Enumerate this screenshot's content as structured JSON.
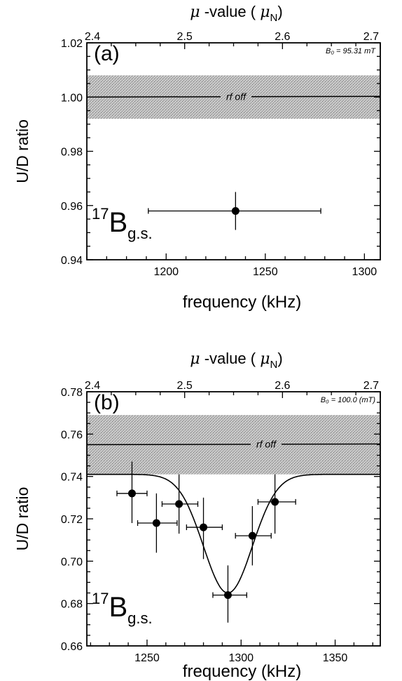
{
  "chart_data": [
    {
      "type": "scatter",
      "panel_label": "(a)",
      "xlabel": "frequency (kHz)",
      "ylabel": "U/D ratio",
      "top_axis_label": {
        "prefix": "μ -value (  ",
        "symbol": "μ",
        "subscript": "N",
        "suffix": ")"
      },
      "xlim": [
        1160,
        1308
      ],
      "ylim": [
        0.94,
        1.02
      ],
      "x_ticks": [
        1200,
        1250,
        1300
      ],
      "y_ticks": [
        0.94,
        0.96,
        0.98,
        1.0,
        1.02
      ],
      "top_ticks": [
        2.4,
        2.5,
        2.6,
        2.7
      ],
      "field_annotation": "B₀ = 95.31 mT",
      "reference_label": "rf off",
      "reference_value": 1.0,
      "reference_band": [
        0.992,
        1.008
      ],
      "isotope": {
        "mass": "17",
        "element": "B",
        "state": "g.s."
      },
      "points": [
        {
          "x": 1235,
          "y": 0.958,
          "xerr_low": 1191,
          "xerr_high": 1278,
          "yerr_low": 0.951,
          "yerr_high": 0.965
        }
      ]
    },
    {
      "type": "scatter",
      "panel_label": "(b)",
      "xlabel": "frequency (kHz)",
      "ylabel": "U/D ratio",
      "top_axis_label": {
        "prefix": "μ -value (  ",
        "symbol": "μ",
        "subscript": "N",
        "suffix": ")"
      },
      "xlim": [
        1218,
        1374
      ],
      "ylim": [
        0.66,
        0.78
      ],
      "x_ticks": [
        1250,
        1300,
        1350
      ],
      "y_ticks": [
        0.66,
        0.68,
        0.7,
        0.72,
        0.74,
        0.76,
        0.78
      ],
      "top_ticks": [
        2.4,
        2.5,
        2.6,
        2.7
      ],
      "field_annotation": "B₀ = 100.0 (mT)",
      "reference_label": "rf off",
      "reference_value": 0.755,
      "reference_band": [
        0.741,
        0.769
      ],
      "isotope": {
        "mass": "17",
        "element": "B",
        "state": "g.s."
      },
      "fit_curve": {
        "baseline": 0.741,
        "depth": 0.056,
        "center": 1293,
        "sigma": 13
      },
      "points": [
        {
          "x": 1242,
          "y": 0.732,
          "xerr_low": 1234,
          "xerr_high": 1250,
          "yerr_low": 0.718,
          "yerr_high": 0.747
        },
        {
          "x": 1255,
          "y": 0.718,
          "xerr_low": 1245,
          "xerr_high": 1266,
          "yerr_low": 0.704,
          "yerr_high": 0.732
        },
        {
          "x": 1267,
          "y": 0.727,
          "xerr_low": 1258,
          "xerr_high": 1277,
          "yerr_low": 0.713,
          "yerr_high": 0.741
        },
        {
          "x": 1280,
          "y": 0.716,
          "xerr_low": 1271,
          "xerr_high": 1290,
          "yerr_low": 0.701,
          "yerr_high": 0.73
        },
        {
          "x": 1293,
          "y": 0.684,
          "xerr_low": 1285,
          "xerr_high": 1303,
          "yerr_low": 0.671,
          "yerr_high": 0.698
        },
        {
          "x": 1306,
          "y": 0.712,
          "xerr_low": 1297,
          "xerr_high": 1316,
          "yerr_low": 0.698,
          "yerr_high": 0.726
        },
        {
          "x": 1318,
          "y": 0.728,
          "xerr_low": 1309,
          "xerr_high": 1329,
          "yerr_low": 0.713,
          "yerr_high": 0.741
        }
      ]
    }
  ]
}
